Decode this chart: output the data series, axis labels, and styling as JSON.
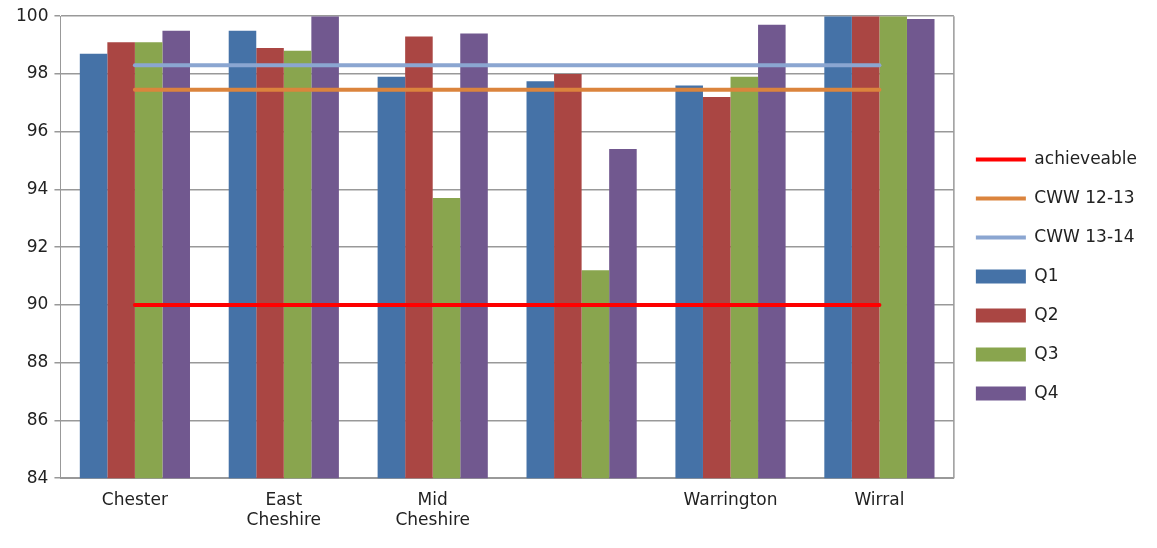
{
  "chart_data": {
    "type": "bar",
    "categories": [
      "Chester",
      "East Cheshire",
      "Mid Cheshire",
      null,
      "Warrington",
      "Wirral"
    ],
    "series": [
      {
        "name": "Q1",
        "color": "#4572a7",
        "values": [
          98.7,
          99.5,
          97.9,
          97.75,
          97.6,
          100
        ]
      },
      {
        "name": "Q2",
        "color": "#aa4643",
        "values": [
          99.1,
          98.9,
          99.3,
          98.0,
          97.2,
          100
        ]
      },
      {
        "name": "Q3",
        "color": "#89a54e",
        "values": [
          99.1,
          98.8,
          93.7,
          91.2,
          97.9,
          100
        ]
      },
      {
        "name": "Q4",
        "color": "#71588f",
        "values": [
          99.5,
          100,
          99.4,
          95.4,
          99.7,
          99.9
        ]
      },
      {
        "name": "achieveable",
        "type": "line",
        "color": "#ff0000",
        "values": [
          90,
          90,
          90,
          90,
          90,
          90
        ]
      },
      {
        "name": "CWW 12-13",
        "type": "line",
        "color": "#db843d",
        "values": [
          97.45,
          97.45,
          97.45,
          97.45,
          97.45,
          97.45
        ]
      },
      {
        "name": "CWW 13-14",
        "type": "line",
        "color": "#8ba6d1",
        "values": [
          98.3,
          98.3,
          98.3,
          98.3,
          98.3,
          98.3
        ]
      }
    ],
    "ylim": [
      84,
      100
    ],
    "yticks": [
      84,
      86,
      88,
      90,
      92,
      94,
      96,
      98,
      100
    ],
    "grid": "y",
    "legend": "right",
    "marker": "none"
  }
}
